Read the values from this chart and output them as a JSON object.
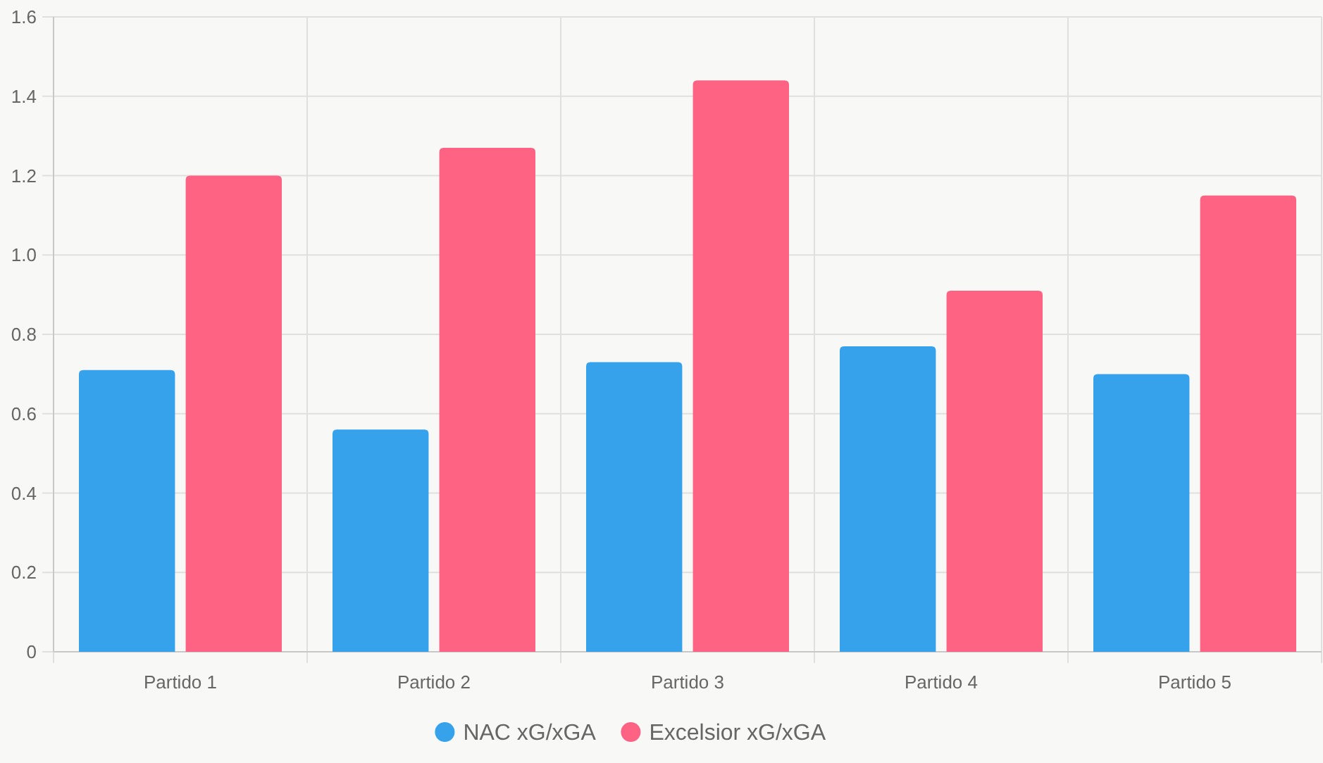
{
  "chart_data": {
    "type": "bar",
    "categories": [
      "Partido 1",
      "Partido 2",
      "Partido 3",
      "Partido 4",
      "Partido 5"
    ],
    "series": [
      {
        "name": "NAC xG/xGA",
        "color": "#36a2eb",
        "values": [
          0.71,
          0.56,
          0.73,
          0.77,
          0.7
        ]
      },
      {
        "name": "Excelsior xG/xGA",
        "color": "#ff6384",
        "values": [
          1.2,
          1.27,
          1.44,
          0.91,
          1.15
        ]
      }
    ],
    "ylim": [
      0,
      1.6
    ],
    "yticks": [
      0,
      {
        "value": 0.2,
        "label": "0.2"
      },
      {
        "value": 0.4,
        "label": "0.4"
      },
      {
        "value": 0.6,
        "label": "0.6"
      },
      {
        "value": 0.8,
        "label": "0.8"
      },
      {
        "value": 1,
        "label": "1.0"
      },
      {
        "value": 1.2,
        "label": "1.2"
      },
      {
        "value": 1.4,
        "label": "1.4"
      },
      {
        "value": 1.6,
        "label": "1.6"
      }
    ],
    "grid": true,
    "legend": "bottom"
  }
}
